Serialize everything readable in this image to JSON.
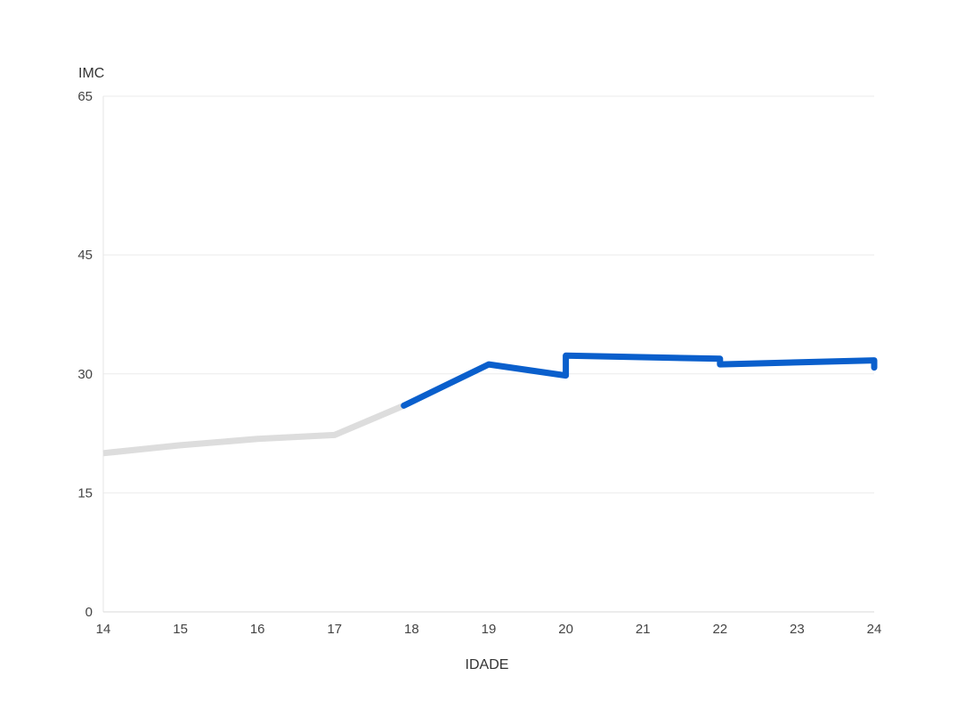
{
  "chart_data": {
    "type": "line",
    "title": "",
    "ylabel": "IMC",
    "xlabel": "IDADE",
    "ylim": [
      0,
      65
    ],
    "xlim": [
      14,
      24
    ],
    "y_ticks": [
      0,
      15,
      30,
      45,
      65
    ],
    "x_ticks": [
      14,
      15,
      16,
      17,
      18,
      19,
      20,
      21,
      22,
      23,
      24
    ],
    "grid": true,
    "series": [
      {
        "color": "#dddddd",
        "points": [
          [
            14,
            20.0
          ],
          [
            15,
            21.0
          ],
          [
            16,
            21.8
          ],
          [
            17,
            22.3
          ],
          [
            17.9,
            26.0
          ]
        ]
      },
      {
        "color": "#0a5fcc",
        "points": [
          [
            17.9,
            26.0
          ],
          [
            19,
            31.2
          ],
          [
            20,
            29.8
          ],
          [
            20,
            32.3
          ],
          [
            22,
            31.9
          ],
          [
            22,
            31.2
          ],
          [
            24,
            31.7
          ],
          [
            24,
            30.8
          ]
        ]
      }
    ]
  }
}
